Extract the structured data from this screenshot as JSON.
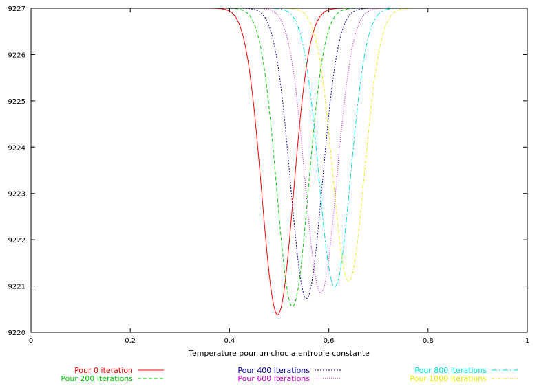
{
  "chart_data": {
    "type": "line",
    "title": "",
    "xlabel": "Temperature pour un choc a entropie constante",
    "ylabel": "",
    "xlim": [
      0,
      1
    ],
    "ylim": [
      9220,
      9227
    ],
    "x_ticks": [
      0,
      0.2,
      0.4,
      0.6,
      0.8,
      1
    ],
    "x_tick_labels": [
      "0",
      "0.2",
      "0.4",
      "0.6",
      "0.8",
      "1"
    ],
    "y_ticks": [
      9220,
      9221,
      9222,
      9223,
      9224,
      9225,
      9226,
      9227
    ],
    "y_tick_labels": [
      "9220",
      "9221",
      "9222",
      "9223",
      "9224",
      "9225",
      "9226",
      "9227"
    ],
    "grid": false,
    "legend_position": "bottom",
    "baseline": 9227.0,
    "series": [
      {
        "name": "Pour 0 iteration",
        "color": "#ff0000",
        "dash": "",
        "min_x": 0.497,
        "min_y": 9220.38,
        "width": 0.045
      },
      {
        "name": "Pour 200 iterations",
        "color": "#00cc00",
        "dash": "5,3",
        "min_x": 0.527,
        "min_y": 9220.56,
        "width": 0.045
      },
      {
        "name": "Pour 400 iterations",
        "color": "#0000a0",
        "dash": "2,2",
        "min_x": 0.555,
        "min_y": 9220.73,
        "width": 0.045
      },
      {
        "name": "Pour 600 iterations",
        "color": "#cc00cc",
        "dash": "1,2",
        "min_x": 0.584,
        "min_y": 9220.85,
        "width": 0.045
      },
      {
        "name": "Pour 800 iterations",
        "color": "#00e0e0",
        "dash": "8,3,2,3",
        "min_x": 0.612,
        "min_y": 9220.99,
        "width": 0.045
      },
      {
        "name": "Pour 1000 iterations",
        "color": "#e8e800",
        "dash": "4,2,1,2",
        "min_x": 0.64,
        "min_y": 9221.1,
        "width": 0.045
      }
    ]
  }
}
